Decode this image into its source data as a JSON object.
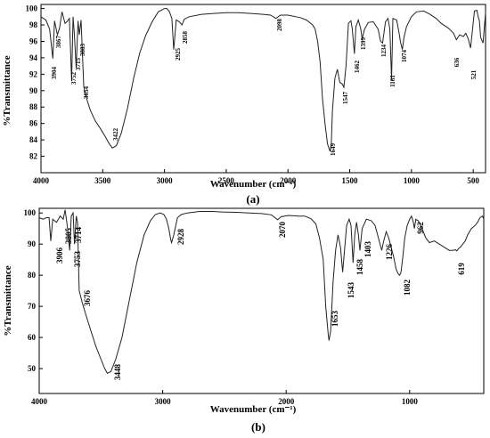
{
  "chart_data": [
    {
      "type": "line",
      "caption": "(a)",
      "xlabel": "Wavenumber (cm⁻¹)",
      "ylabel": "%Transmittance",
      "xlim": [
        4000,
        400
      ],
      "ylim": [
        80,
        100.5
      ],
      "x_reversed": true,
      "xticks": [
        4000,
        3500,
        3000,
        2500,
        2000,
        1500,
        1000,
        500
      ],
      "yticks": [
        82,
        84,
        86,
        88,
        90,
        92,
        94,
        96,
        98,
        100
      ],
      "grid": false,
      "series": [
        {
          "x": [
            4000,
            3960,
            3930,
            3904,
            3890,
            3867,
            3850,
            3830,
            3805,
            3790,
            3770,
            3752,
            3740,
            3730,
            3715,
            3700,
            3690,
            3675,
            3654,
            3630,
            3600,
            3560,
            3520,
            3480,
            3450,
            3422,
            3390,
            3350,
            3300,
            3250,
            3200,
            3150,
            3100,
            3050,
            3000,
            2980,
            2960,
            2940,
            2925,
            2905,
            2880,
            2858,
            2840,
            2800,
            2700,
            2600,
            2500,
            2400,
            2300,
            2200,
            2140,
            2098,
            2060,
            2000,
            1900,
            1850,
            1800,
            1780,
            1760,
            1740,
            1720,
            1700,
            1680,
            1660,
            1649,
            1640,
            1620,
            1600,
            1580,
            1560,
            1547,
            1530,
            1510,
            1490,
            1480,
            1462,
            1450,
            1430,
            1410,
            1399,
            1380,
            1350,
            1310,
            1270,
            1250,
            1234,
            1210,
            1190,
            1175,
            1161,
            1150,
            1120,
            1100,
            1090,
            1074,
            1060,
            1040,
            1000,
            960,
            900,
            850,
            800,
            760,
            700,
            660,
            636,
            610,
            580,
            560,
            540,
            521,
            505,
            490,
            470,
            460,
            450,
            440,
            420,
            400
          ],
          "y": [
            99.0,
            98.6,
            97.5,
            93.9,
            98.5,
            96.8,
            97.6,
            99.6,
            98.2,
            98.4,
            98.8,
            91.2,
            99.0,
            97.0,
            92.8,
            98.5,
            96.8,
            98.6,
            90.5,
            89.0,
            87.6,
            86.3,
            85.4,
            84.4,
            83.6,
            83.0,
            83.3,
            84.8,
            87.8,
            91.5,
            94.6,
            96.8,
            98.4,
            99.6,
            100.0,
            100.0,
            99.6,
            98.8,
            95.0,
            98.6,
            98.4,
            98.0,
            98.7,
            99.0,
            99.3,
            99.4,
            99.5,
            99.5,
            99.4,
            99.3,
            99.2,
            98.8,
            99.2,
            99.2,
            98.9,
            98.6,
            98.0,
            97.5,
            96.0,
            93.5,
            89.0,
            86.0,
            83.5,
            82.6,
            83.6,
            87.5,
            91.5,
            92.6,
            91.0,
            90.8,
            90.4,
            93.0,
            98.2,
            98.5,
            97.6,
            94.5,
            97.8,
            98.6,
            97.5,
            96.3,
            97.5,
            98.3,
            98.4,
            97.5,
            96.0,
            95.8,
            98.4,
            98.8,
            97.5,
            91.3,
            98.8,
            98.6,
            97.0,
            96.0,
            95.0,
            96.5,
            97.8,
            99.0,
            99.6,
            99.7,
            99.3,
            98.8,
            98.2,
            97.6,
            97.0,
            96.2,
            96.8,
            96.6,
            97.0,
            96.3,
            95.2,
            97.5,
            99.7,
            99.8,
            99.0,
            98.5,
            96.5,
            95.8,
            99.5
          ]
        }
      ],
      "peak_labels": [
        "3904",
        "3867",
        "3752",
        "3715",
        "3883",
        "3654",
        "3422",
        "2925",
        "2858",
        "2098",
        "1649",
        "1547",
        "1462",
        "1399",
        "1234",
        "1161",
        "1074",
        "636",
        "521"
      ]
    },
    {
      "type": "line",
      "caption": "(b)",
      "xlabel": "Wavenumber (cm⁻¹)",
      "ylabel": "%Transmittance",
      "xlim": [
        4000,
        400
      ],
      "ylim": [
        42,
        101.5
      ],
      "x_reversed": true,
      "xticks": [
        4000,
        3000,
        2000,
        1000
      ],
      "yticks": [
        50,
        60,
        70,
        80,
        90,
        100
      ],
      "grid": false,
      "series": [
        {
          "x": [
            4000,
            3970,
            3940,
            3920,
            3906,
            3890,
            3860,
            3830,
            3805,
            3790,
            3770,
            3753,
            3740,
            3725,
            3714,
            3700,
            3690,
            3676,
            3650,
            3620,
            3580,
            3540,
            3500,
            3470,
            3448,
            3420,
            3380,
            3330,
            3270,
            3210,
            3150,
            3100,
            3060,
            3020,
            2990,
            2970,
            2950,
            2935,
            2928,
            2910,
            2880,
            2850,
            2800,
            2700,
            2600,
            2500,
            2400,
            2300,
            2200,
            2120,
            2090,
            2070,
            2040,
            1980,
            1900,
            1850,
            1800,
            1760,
            1730,
            1700,
            1680,
            1660,
            1653,
            1640,
            1620,
            1600,
            1580,
            1560,
            1543,
            1530,
            1510,
            1490,
            1475,
            1458,
            1445,
            1430,
            1415,
            1403,
            1385,
            1350,
            1310,
            1280,
            1260,
            1240,
            1226,
            1210,
            1190,
            1170,
            1150,
            1130,
            1110,
            1095,
            1082,
            1070,
            1055,
            1040,
            1020,
            1000,
            985,
            970,
            962,
            950,
            930,
            900,
            870,
            840,
            800,
            760,
            720,
            680,
            650,
            630,
            619,
            605,
            590,
            570,
            550,
            530,
            500,
            470,
            450,
            430,
            410,
            400
          ],
          "y": [
            98.5,
            98.0,
            98.5,
            98.5,
            91.0,
            98.0,
            97.0,
            99.0,
            98.0,
            101.0,
            95.0,
            88.0,
            99.0,
            100.0,
            90.0,
            99.0,
            97.0,
            75.0,
            71.0,
            67.0,
            62.0,
            57.0,
            53.0,
            50.0,
            48.5,
            49.0,
            53.0,
            60.0,
            72.0,
            84.0,
            93.0,
            97.5,
            99.5,
            100.0,
            99.5,
            98.0,
            95.0,
            91.5,
            90.5,
            93.0,
            98.5,
            99.5,
            100.0,
            100.5,
            100.5,
            100.3,
            100.2,
            100.0,
            99.8,
            99.4,
            98.5,
            97.8,
            98.8,
            99.2,
            99.0,
            99.0,
            98.2,
            96.5,
            92.0,
            85.0,
            70.0,
            61.0,
            59.0,
            62.0,
            78.0,
            88.0,
            93.0,
            89.0,
            81.0,
            87.0,
            96.0,
            98.0,
            96.0,
            84.0,
            93.0,
            97.0,
            93.0,
            88.0,
            95.0,
            98.0,
            97.5,
            96.0,
            93.0,
            90.0,
            88.0,
            91.0,
            94.0,
            92.0,
            89.0,
            86.0,
            82.0,
            80.5,
            80.0,
            81.0,
            86.0,
            92.0,
            96.0,
            98.0,
            99.0,
            97.0,
            95.0,
            98.0,
            97.5,
            95.0,
            92.0,
            90.5,
            91.0,
            90.0,
            89.0,
            88.0,
            88.0,
            88.2,
            87.8,
            88.5,
            89.0,
            90.0,
            91.0,
            93.0,
            95.0,
            96.0,
            97.0,
            98.5,
            99.0,
            98.0
          ]
        }
      ],
      "peak_labels": [
        "3906",
        "3805",
        "3753",
        "3714",
        "3676",
        "3448",
        "2928",
        "2070",
        "1653",
        "1543",
        "1458",
        "1403",
        "1226",
        "1082",
        "962",
        "619"
      ]
    }
  ]
}
